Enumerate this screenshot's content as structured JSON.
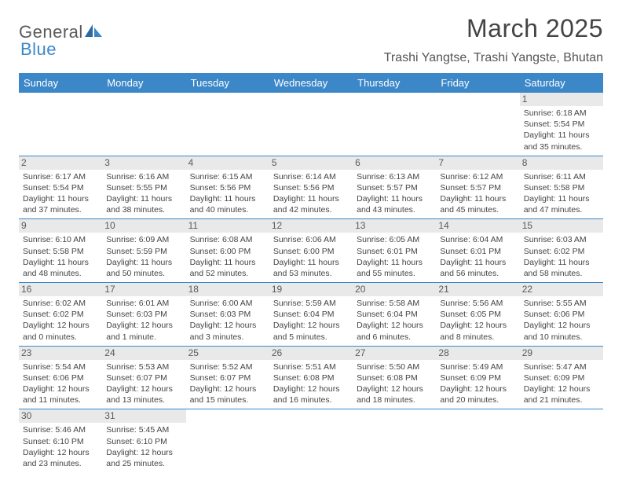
{
  "brand": {
    "word1": "General",
    "word2": "Blue"
  },
  "colors": {
    "header_bg": "#3b87c8",
    "header_text": "#ffffff",
    "daynum_bg": "#e9e9e9",
    "border": "#3b87c8",
    "logo_dark": "#2a6aa0",
    "logo_light": "#3b87c8"
  },
  "title": "March 2025",
  "location": "Trashi Yangtse, Trashi Yangste, Bhutan",
  "dow": [
    "Sunday",
    "Monday",
    "Tuesday",
    "Wednesday",
    "Thursday",
    "Friday",
    "Saturday"
  ],
  "weeks": [
    [
      {
        "n": "",
        "sr": "",
        "ss": "",
        "dl": ""
      },
      {
        "n": "",
        "sr": "",
        "ss": "",
        "dl": ""
      },
      {
        "n": "",
        "sr": "",
        "ss": "",
        "dl": ""
      },
      {
        "n": "",
        "sr": "",
        "ss": "",
        "dl": ""
      },
      {
        "n": "",
        "sr": "",
        "ss": "",
        "dl": ""
      },
      {
        "n": "",
        "sr": "",
        "ss": "",
        "dl": ""
      },
      {
        "n": "1",
        "sr": "Sunrise: 6:18 AM",
        "ss": "Sunset: 5:54 PM",
        "dl": "Daylight: 11 hours and 35 minutes."
      }
    ],
    [
      {
        "n": "2",
        "sr": "Sunrise: 6:17 AM",
        "ss": "Sunset: 5:54 PM",
        "dl": "Daylight: 11 hours and 37 minutes."
      },
      {
        "n": "3",
        "sr": "Sunrise: 6:16 AM",
        "ss": "Sunset: 5:55 PM",
        "dl": "Daylight: 11 hours and 38 minutes."
      },
      {
        "n": "4",
        "sr": "Sunrise: 6:15 AM",
        "ss": "Sunset: 5:56 PM",
        "dl": "Daylight: 11 hours and 40 minutes."
      },
      {
        "n": "5",
        "sr": "Sunrise: 6:14 AM",
        "ss": "Sunset: 5:56 PM",
        "dl": "Daylight: 11 hours and 42 minutes."
      },
      {
        "n": "6",
        "sr": "Sunrise: 6:13 AM",
        "ss": "Sunset: 5:57 PM",
        "dl": "Daylight: 11 hours and 43 minutes."
      },
      {
        "n": "7",
        "sr": "Sunrise: 6:12 AM",
        "ss": "Sunset: 5:57 PM",
        "dl": "Daylight: 11 hours and 45 minutes."
      },
      {
        "n": "8",
        "sr": "Sunrise: 6:11 AM",
        "ss": "Sunset: 5:58 PM",
        "dl": "Daylight: 11 hours and 47 minutes."
      }
    ],
    [
      {
        "n": "9",
        "sr": "Sunrise: 6:10 AM",
        "ss": "Sunset: 5:58 PM",
        "dl": "Daylight: 11 hours and 48 minutes."
      },
      {
        "n": "10",
        "sr": "Sunrise: 6:09 AM",
        "ss": "Sunset: 5:59 PM",
        "dl": "Daylight: 11 hours and 50 minutes."
      },
      {
        "n": "11",
        "sr": "Sunrise: 6:08 AM",
        "ss": "Sunset: 6:00 PM",
        "dl": "Daylight: 11 hours and 52 minutes."
      },
      {
        "n": "12",
        "sr": "Sunrise: 6:06 AM",
        "ss": "Sunset: 6:00 PM",
        "dl": "Daylight: 11 hours and 53 minutes."
      },
      {
        "n": "13",
        "sr": "Sunrise: 6:05 AM",
        "ss": "Sunset: 6:01 PM",
        "dl": "Daylight: 11 hours and 55 minutes."
      },
      {
        "n": "14",
        "sr": "Sunrise: 6:04 AM",
        "ss": "Sunset: 6:01 PM",
        "dl": "Daylight: 11 hours and 56 minutes."
      },
      {
        "n": "15",
        "sr": "Sunrise: 6:03 AM",
        "ss": "Sunset: 6:02 PM",
        "dl": "Daylight: 11 hours and 58 minutes."
      }
    ],
    [
      {
        "n": "16",
        "sr": "Sunrise: 6:02 AM",
        "ss": "Sunset: 6:02 PM",
        "dl": "Daylight: 12 hours and 0 minutes."
      },
      {
        "n": "17",
        "sr": "Sunrise: 6:01 AM",
        "ss": "Sunset: 6:03 PM",
        "dl": "Daylight: 12 hours and 1 minute."
      },
      {
        "n": "18",
        "sr": "Sunrise: 6:00 AM",
        "ss": "Sunset: 6:03 PM",
        "dl": "Daylight: 12 hours and 3 minutes."
      },
      {
        "n": "19",
        "sr": "Sunrise: 5:59 AM",
        "ss": "Sunset: 6:04 PM",
        "dl": "Daylight: 12 hours and 5 minutes."
      },
      {
        "n": "20",
        "sr": "Sunrise: 5:58 AM",
        "ss": "Sunset: 6:04 PM",
        "dl": "Daylight: 12 hours and 6 minutes."
      },
      {
        "n": "21",
        "sr": "Sunrise: 5:56 AM",
        "ss": "Sunset: 6:05 PM",
        "dl": "Daylight: 12 hours and 8 minutes."
      },
      {
        "n": "22",
        "sr": "Sunrise: 5:55 AM",
        "ss": "Sunset: 6:06 PM",
        "dl": "Daylight: 12 hours and 10 minutes."
      }
    ],
    [
      {
        "n": "23",
        "sr": "Sunrise: 5:54 AM",
        "ss": "Sunset: 6:06 PM",
        "dl": "Daylight: 12 hours and 11 minutes."
      },
      {
        "n": "24",
        "sr": "Sunrise: 5:53 AM",
        "ss": "Sunset: 6:07 PM",
        "dl": "Daylight: 12 hours and 13 minutes."
      },
      {
        "n": "25",
        "sr": "Sunrise: 5:52 AM",
        "ss": "Sunset: 6:07 PM",
        "dl": "Daylight: 12 hours and 15 minutes."
      },
      {
        "n": "26",
        "sr": "Sunrise: 5:51 AM",
        "ss": "Sunset: 6:08 PM",
        "dl": "Daylight: 12 hours and 16 minutes."
      },
      {
        "n": "27",
        "sr": "Sunrise: 5:50 AM",
        "ss": "Sunset: 6:08 PM",
        "dl": "Daylight: 12 hours and 18 minutes."
      },
      {
        "n": "28",
        "sr": "Sunrise: 5:49 AM",
        "ss": "Sunset: 6:09 PM",
        "dl": "Daylight: 12 hours and 20 minutes."
      },
      {
        "n": "29",
        "sr": "Sunrise: 5:47 AM",
        "ss": "Sunset: 6:09 PM",
        "dl": "Daylight: 12 hours and 21 minutes."
      }
    ],
    [
      {
        "n": "30",
        "sr": "Sunrise: 5:46 AM",
        "ss": "Sunset: 6:10 PM",
        "dl": "Daylight: 12 hours and 23 minutes."
      },
      {
        "n": "31",
        "sr": "Sunrise: 5:45 AM",
        "ss": "Sunset: 6:10 PM",
        "dl": "Daylight: 12 hours and 25 minutes."
      },
      {
        "n": "",
        "sr": "",
        "ss": "",
        "dl": ""
      },
      {
        "n": "",
        "sr": "",
        "ss": "",
        "dl": ""
      },
      {
        "n": "",
        "sr": "",
        "ss": "",
        "dl": ""
      },
      {
        "n": "",
        "sr": "",
        "ss": "",
        "dl": ""
      },
      {
        "n": "",
        "sr": "",
        "ss": "",
        "dl": ""
      }
    ]
  ]
}
